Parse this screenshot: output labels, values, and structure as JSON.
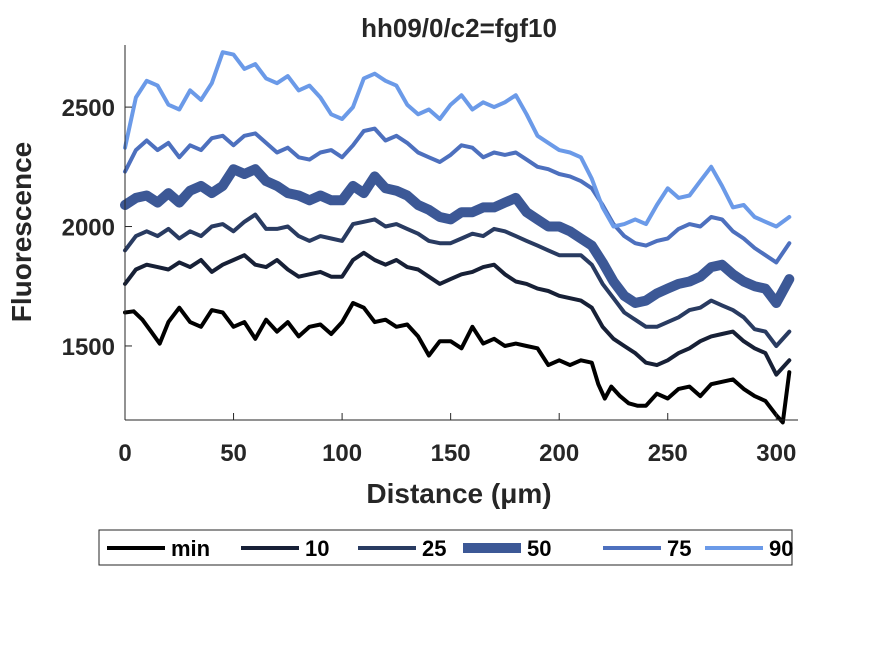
{
  "chart_data": {
    "type": "line",
    "title": "hh09/0/c2=fgf10",
    "xlabel": "Distance (μm)",
    "ylabel": "Fluorescence",
    "xlim": [
      0,
      310
    ],
    "ylim": [
      1190,
      2760
    ],
    "xticks": [
      0,
      50,
      100,
      150,
      200,
      250,
      300
    ],
    "yticks": [
      1500,
      2000,
      2500
    ],
    "grid": false,
    "legend_position": "bottom",
    "series": [
      {
        "name": "min",
        "color": "#000000",
        "width": 4,
        "x": [
          0,
          4,
          8,
          12,
          16,
          20,
          25,
          30,
          35,
          40,
          45,
          50,
          55,
          60,
          65,
          70,
          75,
          80,
          85,
          90,
          95,
          100,
          105,
          110,
          115,
          120,
          125,
          130,
          135,
          140,
          145,
          150,
          155,
          160,
          165,
          170,
          175,
          180,
          185,
          190,
          195,
          200,
          205,
          210,
          215,
          218,
          221,
          224,
          228,
          232,
          236,
          240,
          245,
          250,
          255,
          260,
          265,
          270,
          275,
          280,
          285,
          290,
          295,
          300,
          303,
          306
        ],
        "y": [
          1640,
          1645,
          1610,
          1560,
          1510,
          1600,
          1660,
          1600,
          1580,
          1650,
          1640,
          1580,
          1600,
          1530,
          1610,
          1560,
          1600,
          1540,
          1580,
          1590,
          1550,
          1600,
          1680,
          1660,
          1600,
          1610,
          1580,
          1590,
          1540,
          1460,
          1520,
          1520,
          1490,
          1580,
          1510,
          1530,
          1500,
          1510,
          1500,
          1490,
          1420,
          1440,
          1420,
          1440,
          1430,
          1340,
          1280,
          1330,
          1290,
          1260,
          1250,
          1250,
          1300,
          1280,
          1320,
          1330,
          1290,
          1340,
          1350,
          1360,
          1320,
          1290,
          1270,
          1210,
          1180,
          1390
        ]
      },
      {
        "name": "10",
        "color": "#172036",
        "width": 4,
        "x": [
          0,
          5,
          10,
          15,
          20,
          25,
          30,
          35,
          40,
          45,
          50,
          55,
          60,
          65,
          70,
          75,
          80,
          85,
          90,
          95,
          100,
          105,
          110,
          115,
          120,
          125,
          130,
          135,
          140,
          145,
          150,
          155,
          160,
          165,
          170,
          175,
          180,
          185,
          190,
          195,
          200,
          205,
          210,
          215,
          220,
          225,
          230,
          235,
          240,
          245,
          250,
          255,
          260,
          265,
          270,
          275,
          280,
          285,
          290,
          295,
          300,
          306
        ],
        "y": [
          1760,
          1820,
          1840,
          1830,
          1820,
          1850,
          1830,
          1860,
          1810,
          1840,
          1860,
          1880,
          1840,
          1830,
          1860,
          1820,
          1790,
          1800,
          1810,
          1790,
          1790,
          1860,
          1890,
          1860,
          1840,
          1860,
          1830,
          1820,
          1790,
          1760,
          1780,
          1800,
          1810,
          1830,
          1840,
          1800,
          1770,
          1760,
          1740,
          1730,
          1710,
          1700,
          1690,
          1660,
          1580,
          1530,
          1500,
          1470,
          1430,
          1420,
          1440,
          1470,
          1490,
          1520,
          1540,
          1550,
          1560,
          1520,
          1490,
          1470,
          1380,
          1440
        ]
      },
      {
        "name": "25",
        "color": "#293B61",
        "width": 4,
        "x": [
          0,
          5,
          10,
          15,
          20,
          25,
          30,
          35,
          40,
          45,
          50,
          55,
          60,
          65,
          70,
          75,
          80,
          85,
          90,
          95,
          100,
          105,
          110,
          115,
          120,
          125,
          130,
          135,
          140,
          145,
          150,
          155,
          160,
          165,
          170,
          175,
          180,
          185,
          190,
          195,
          200,
          205,
          210,
          215,
          220,
          225,
          230,
          235,
          240,
          245,
          250,
          255,
          260,
          265,
          270,
          275,
          280,
          285,
          290,
          295,
          300,
          306
        ],
        "y": [
          1900,
          1960,
          1980,
          1960,
          1990,
          1950,
          1980,
          1960,
          2000,
          2010,
          1980,
          2020,
          2050,
          1990,
          1990,
          2000,
          1960,
          1940,
          1960,
          1950,
          1940,
          2010,
          2020,
          2030,
          2000,
          2010,
          1990,
          1970,
          1940,
          1930,
          1930,
          1950,
          1970,
          1960,
          1990,
          1980,
          1960,
          1940,
          1920,
          1900,
          1880,
          1880,
          1880,
          1840,
          1760,
          1700,
          1640,
          1610,
          1580,
          1580,
          1600,
          1620,
          1650,
          1660,
          1690,
          1670,
          1650,
          1620,
          1570,
          1560,
          1500,
          1560
        ]
      },
      {
        "name": "50",
        "color": "#3C5896",
        "width": 10,
        "x": [
          0,
          5,
          10,
          15,
          20,
          25,
          30,
          35,
          40,
          45,
          50,
          55,
          60,
          65,
          70,
          75,
          80,
          85,
          90,
          95,
          100,
          105,
          110,
          115,
          120,
          125,
          130,
          135,
          140,
          145,
          150,
          155,
          160,
          165,
          170,
          175,
          180,
          185,
          190,
          195,
          200,
          205,
          210,
          215,
          220,
          225,
          230,
          235,
          240,
          245,
          250,
          255,
          260,
          265,
          270,
          275,
          280,
          285,
          290,
          295,
          300,
          306
        ],
        "y": [
          2090,
          2120,
          2130,
          2100,
          2140,
          2100,
          2150,
          2170,
          2140,
          2170,
          2240,
          2220,
          2240,
          2190,
          2170,
          2140,
          2130,
          2110,
          2130,
          2110,
          2110,
          2170,
          2140,
          2210,
          2160,
          2150,
          2130,
          2090,
          2070,
          2040,
          2030,
          2060,
          2060,
          2080,
          2080,
          2100,
          2120,
          2060,
          2030,
          2000,
          2000,
          1980,
          1950,
          1920,
          1850,
          1770,
          1710,
          1680,
          1690,
          1720,
          1740,
          1760,
          1770,
          1790,
          1830,
          1840,
          1800,
          1770,
          1750,
          1740,
          1680,
          1780
        ]
      },
      {
        "name": "75",
        "color": "#4D70BE",
        "width": 4,
        "x": [
          0,
          5,
          10,
          15,
          20,
          25,
          30,
          35,
          40,
          45,
          50,
          55,
          60,
          65,
          70,
          75,
          80,
          85,
          90,
          95,
          100,
          105,
          110,
          115,
          120,
          125,
          130,
          135,
          140,
          145,
          150,
          155,
          160,
          165,
          170,
          175,
          180,
          185,
          190,
          195,
          200,
          205,
          210,
          215,
          220,
          225,
          230,
          235,
          240,
          245,
          250,
          255,
          260,
          265,
          270,
          275,
          280,
          285,
          290,
          295,
          300,
          306
        ],
        "y": [
          2230,
          2320,
          2360,
          2320,
          2350,
          2290,
          2340,
          2320,
          2370,
          2380,
          2340,
          2380,
          2390,
          2350,
          2310,
          2330,
          2290,
          2280,
          2310,
          2320,
          2290,
          2340,
          2400,
          2410,
          2360,
          2380,
          2350,
          2310,
          2290,
          2270,
          2300,
          2340,
          2330,
          2290,
          2310,
          2300,
          2310,
          2280,
          2250,
          2240,
          2220,
          2210,
          2190,
          2160,
          2090,
          2010,
          1960,
          1930,
          1920,
          1940,
          1950,
          1990,
          2010,
          2000,
          2040,
          2030,
          1980,
          1950,
          1910,
          1880,
          1850,
          1930
        ]
      },
      {
        "name": "90",
        "color": "#6B9AE8",
        "width": 4,
        "x": [
          0,
          5,
          10,
          15,
          20,
          25,
          30,
          35,
          40,
          45,
          50,
          55,
          60,
          65,
          70,
          75,
          80,
          85,
          90,
          95,
          100,
          105,
          110,
          115,
          120,
          125,
          130,
          135,
          140,
          145,
          150,
          155,
          160,
          165,
          170,
          175,
          180,
          185,
          190,
          195,
          200,
          205,
          210,
          215,
          220,
          225,
          230,
          235,
          240,
          245,
          250,
          255,
          260,
          265,
          270,
          275,
          280,
          285,
          290,
          295,
          300,
          306
        ],
        "y": [
          2330,
          2540,
          2610,
          2590,
          2510,
          2490,
          2570,
          2530,
          2600,
          2730,
          2720,
          2660,
          2680,
          2620,
          2600,
          2630,
          2570,
          2590,
          2540,
          2470,
          2450,
          2500,
          2620,
          2640,
          2610,
          2590,
          2510,
          2470,
          2490,
          2450,
          2510,
          2550,
          2490,
          2520,
          2500,
          2520,
          2550,
          2470,
          2380,
          2350,
          2320,
          2310,
          2290,
          2200,
          2080,
          2000,
          2010,
          2030,
          2010,
          2090,
          2160,
          2120,
          2130,
          2190,
          2250,
          2170,
          2080,
          2090,
          2040,
          2020,
          2000,
          2040
        ]
      }
    ]
  }
}
